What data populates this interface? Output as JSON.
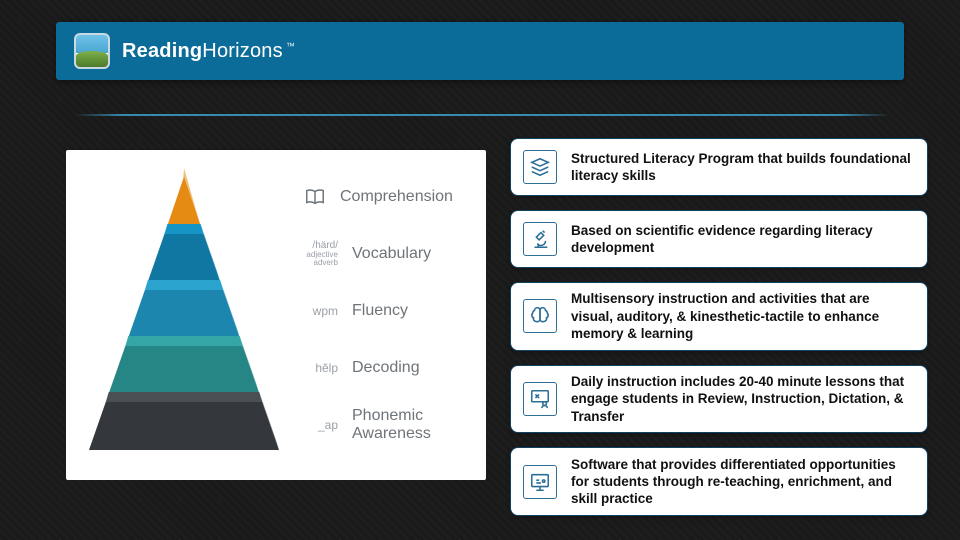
{
  "colors": {
    "header_bg": "#0b6b99",
    "divider": "#3a97bf",
    "card_icon_stroke": "#2d6f96",
    "card_border": "#0f4262",
    "background": "#1a1a1a",
    "panel_bg": "#ffffff",
    "pyr_label_color": "#6e7479"
  },
  "brand": {
    "part1": "Reading",
    "part2": "Horizons",
    "tm": "™"
  },
  "pyramid": {
    "tiers": [
      {
        "name": "Comprehension",
        "color_top": "#f4a51a",
        "color_bot": "#e58a12",
        "hint_type": "icon-book"
      },
      {
        "name": "Vocabulary",
        "color_top": "#1594c6",
        "color_bot": "#1077a3",
        "hint_type": "text",
        "hint": "/härd/",
        "sub": "adjective\nadverb"
      },
      {
        "name": "Fluency",
        "color_top": "#2aa4cf",
        "color_bot": "#1c86ae",
        "hint_type": "text",
        "hint": "wpm"
      },
      {
        "name": "Decoding",
        "color_top": "#35a6a6",
        "color_bot": "#268686",
        "hint_type": "text",
        "hint": "hĕlp"
      },
      {
        "name": "Phonemic Awareness",
        "color_top": "#4a4f54",
        "color_bot": "#34383c",
        "hint_type": "text",
        "hint": "_ap"
      }
    ]
  },
  "cards": [
    {
      "icon": "stack",
      "text": "Structured Literacy Program that builds foundational literacy skills"
    },
    {
      "icon": "microscope",
      "text": "Based on scientific evidence regarding literacy development"
    },
    {
      "icon": "brain",
      "text": "Multisensory instruction and activities that are visual, auditory, & kinesthetic-tactile to enhance memory & learning"
    },
    {
      "icon": "teacher",
      "text": "Daily instruction includes 20-40 minute lessons that engage students in Review, Instruction, Dictation, & Transfer"
    },
    {
      "icon": "software",
      "text": "Software that provides differentiated opportunities for students through re-teaching, enrichment, and skill practice"
    }
  ]
}
